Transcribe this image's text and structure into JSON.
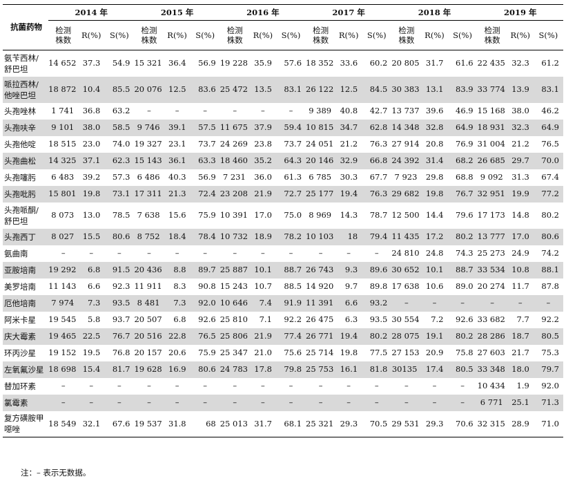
{
  "header": {
    "drug_col": "抗菌药物",
    "years": [
      "2014 年",
      "2015 年",
      "2016 年",
      "2017 年",
      "2018 年",
      "2019 年"
    ],
    "sub_n": "检测株数",
    "sub_r": "R(%)",
    "sub_s": "S(%)"
  },
  "rows": [
    {
      "drug": "氨苄西林/舒巴坦",
      "cells": [
        [
          "14 652",
          "37.3",
          "54.9"
        ],
        [
          "15 321",
          "36.4",
          "56.9"
        ],
        [
          "19 228",
          "35.9",
          "57.6"
        ],
        [
          "18 352",
          "33.6",
          "60.2"
        ],
        [
          "20 805",
          "31.7",
          "61.6"
        ],
        [
          "22 435",
          "32.3",
          "61.2"
        ]
      ]
    },
    {
      "drug": "哌拉西林/他唑巴坦",
      "cells": [
        [
          "18 872",
          "10.4",
          "85.5"
        ],
        [
          "20 076",
          "12.5",
          "83.6"
        ],
        [
          "25 472",
          "13.5",
          "83.1"
        ],
        [
          "26 122",
          "12.5",
          "84.5"
        ],
        [
          "30 383",
          "13.1",
          "83.9"
        ],
        [
          "33 774",
          "13.9",
          "83.1"
        ]
      ]
    },
    {
      "drug": "头孢唑林",
      "cells": [
        [
          "1 741",
          "36.8",
          "63.2"
        ],
        [
          "–",
          "–",
          "–"
        ],
        [
          "–",
          "–",
          "–"
        ],
        [
          "9 389",
          "40.8",
          "42.7"
        ],
        [
          "13 737",
          "39.6",
          "46.9"
        ],
        [
          "15 168",
          "38.0",
          "46.2"
        ]
      ]
    },
    {
      "drug": "头孢呋辛",
      "cells": [
        [
          "9 101",
          "38.0",
          "58.5"
        ],
        [
          "9 746",
          "39.1",
          "57.5"
        ],
        [
          "11 675",
          "37.9",
          "59.4"
        ],
        [
          "10 815",
          "34.7",
          "62.8"
        ],
        [
          "14 348",
          "32.8",
          "64.9"
        ],
        [
          "18 931",
          "32.3",
          "64.9"
        ]
      ]
    },
    {
      "drug": "头孢他啶",
      "cells": [
        [
          "18 515",
          "23.0",
          "74.0"
        ],
        [
          "19 327",
          "23.1",
          "73.7"
        ],
        [
          "24 269",
          "23.8",
          "73.7"
        ],
        [
          "24 051",
          "21.2",
          "76.3"
        ],
        [
          "27 914",
          "20.8",
          "76.9"
        ],
        [
          "31 004",
          "21.2",
          "76.5"
        ]
      ]
    },
    {
      "drug": "头孢曲松",
      "cells": [
        [
          "14 325",
          "37.1",
          "62.3"
        ],
        [
          "15 143",
          "36.1",
          "63.3"
        ],
        [
          "18 460",
          "35.2",
          "64.3"
        ],
        [
          "20 146",
          "32.9",
          "66.8"
        ],
        [
          "24 392",
          "31.4",
          "68.2"
        ],
        [
          "26 685",
          "29.7",
          "70.0"
        ]
      ]
    },
    {
      "drug": "头孢噻肟",
      "cells": [
        [
          "6 483",
          "39.2",
          "57.3"
        ],
        [
          "6 486",
          "40.3",
          "56.9"
        ],
        [
          "7 231",
          "36.0",
          "61.3"
        ],
        [
          "6 785",
          "30.3",
          "67.7"
        ],
        [
          "7 923",
          "29.8",
          "68.8"
        ],
        [
          "9 092",
          "31.3",
          "67.4"
        ]
      ]
    },
    {
      "drug": "头孢吡肟",
      "cells": [
        [
          "15 801",
          "19.8",
          "73.1"
        ],
        [
          "17 311",
          "21.3",
          "72.4"
        ],
        [
          "23 208",
          "21.9",
          "72.7"
        ],
        [
          "25 177",
          "19.4",
          "76.3"
        ],
        [
          "29 682",
          "19.8",
          "76.7"
        ],
        [
          "32 951",
          "19.9",
          "77.2"
        ]
      ]
    },
    {
      "drug": "头孢哌酮/舒巴坦",
      "cells": [
        [
          "8 073",
          "13.0",
          "78.5"
        ],
        [
          "7 638",
          "15.6",
          "75.9"
        ],
        [
          "10 391",
          "17.0",
          "75.0"
        ],
        [
          "8 969",
          "14.3",
          "78.7"
        ],
        [
          "12 500",
          "14.4",
          "79.6"
        ],
        [
          "17 173",
          "14.8",
          "80.2"
        ]
      ]
    },
    {
      "drug": "头孢西丁",
      "cells": [
        [
          "8 027",
          "15.5",
          "80.6"
        ],
        [
          "8 752",
          "18.4",
          "78.4"
        ],
        [
          "10 732",
          "18.9",
          "78.2"
        ],
        [
          "10 103",
          "18",
          "79.4"
        ],
        [
          "11 435",
          "17.2",
          "80.2"
        ],
        [
          "13 777",
          "17.0",
          "80.6"
        ]
      ]
    },
    {
      "drug": "氨曲南",
      "cells": [
        [
          "–",
          "–",
          "–"
        ],
        [
          "–",
          "–",
          "–"
        ],
        [
          "–",
          "–",
          "–"
        ],
        [
          "–",
          "–",
          "–"
        ],
        [
          "24 810",
          "24.8",
          "74.3"
        ],
        [
          "25 273",
          "24.9",
          "74.2"
        ]
      ]
    },
    {
      "drug": "亚胺培南",
      "cells": [
        [
          "19 292",
          "6.8",
          "91.5"
        ],
        [
          "20 436",
          "8.8",
          "89.7"
        ],
        [
          "25 887",
          "10.1",
          "88.7"
        ],
        [
          "26 743",
          "9.3",
          "89.6"
        ],
        [
          "30 652",
          "10.1",
          "88.7"
        ],
        [
          "33 534",
          "10.8",
          "88.1"
        ]
      ]
    },
    {
      "drug": "美罗培南",
      "cells": [
        [
          "11 143",
          "6.6",
          "92.3"
        ],
        [
          "11 911",
          "8.3",
          "90.8"
        ],
        [
          "15 243",
          "10.7",
          "88.5"
        ],
        [
          "14 920",
          "9.7",
          "89.8"
        ],
        [
          "17 638",
          "10.6",
          "89.0"
        ],
        [
          "20 274",
          "11.7",
          "87.8"
        ]
      ]
    },
    {
      "drug": "厄他培南",
      "cells": [
        [
          "7 974",
          "7.3",
          "93.5"
        ],
        [
          "8 481",
          "7.3",
          "92.0"
        ],
        [
          "10 646",
          "7.4",
          "91.9"
        ],
        [
          "11 391",
          "6.6",
          "93.2"
        ],
        [
          "–",
          "–",
          "–"
        ],
        [
          "–",
          "–",
          "–"
        ]
      ]
    },
    {
      "drug": "阿米卡星",
      "cells": [
        [
          "19 545",
          "5.8",
          "93.7"
        ],
        [
          "20 507",
          "6.8",
          "92.6"
        ],
        [
          "25 810",
          "7.1",
          "92.2"
        ],
        [
          "26 475",
          "6.3",
          "93.5"
        ],
        [
          "30 554",
          "7.2",
          "92.6"
        ],
        [
          "33 682",
          "7.7",
          "92.2"
        ]
      ]
    },
    {
      "drug": "庆大霉素",
      "cells": [
        [
          "19 465",
          "22.5",
          "76.7"
        ],
        [
          "20 516",
          "22.8",
          "76.5"
        ],
        [
          "25 806",
          "21.9",
          "77.4"
        ],
        [
          "26 771",
          "19.4",
          "80.2"
        ],
        [
          "28 075",
          "19.1",
          "80.2"
        ],
        [
          "28 286",
          "18.7",
          "80.5"
        ]
      ]
    },
    {
      "drug": "环丙沙星",
      "cells": [
        [
          "19 152",
          "19.5",
          "76.8"
        ],
        [
          "20 157",
          "20.6",
          "75.9"
        ],
        [
          "25 347",
          "21.0",
          "75.6"
        ],
        [
          "25 714",
          "19.8",
          "77.5"
        ],
        [
          "27 153",
          "20.9",
          "75.8"
        ],
        [
          "27 603",
          "21.7",
          "75.3"
        ]
      ]
    },
    {
      "drug": "左氧氟沙星",
      "cells": [
        [
          "18 698",
          "15.4",
          "81.7"
        ],
        [
          "19 628",
          "16.9",
          "80.6"
        ],
        [
          "24 783",
          "17.8",
          "79.8"
        ],
        [
          "25 753",
          "16.1",
          "81.8"
        ],
        [
          "30135",
          "17.4",
          "80.5"
        ],
        [
          "33 348",
          "18.0",
          "79.7"
        ]
      ]
    },
    {
      "drug": "替加环素",
      "cells": [
        [
          "–",
          "–",
          "–"
        ],
        [
          "–",
          "–",
          "–"
        ],
        [
          "–",
          "–",
          "–"
        ],
        [
          "–",
          "–",
          "–"
        ],
        [
          "–",
          "–",
          "–"
        ],
        [
          "10 434",
          "1.9",
          "92.0"
        ]
      ]
    },
    {
      "drug": "氯霉素",
      "cells": [
        [
          "–",
          "–",
          "–"
        ],
        [
          "–",
          "–",
          "–"
        ],
        [
          "–",
          "–",
          "–"
        ],
        [
          "–",
          "–",
          "–"
        ],
        [
          "–",
          "–",
          "–"
        ],
        [
          "6 771",
          "25.1",
          "71.3"
        ]
      ]
    },
    {
      "drug": "复方磺胺甲噁唑",
      "cells": [
        [
          "18 549",
          "32.1",
          "67.6"
        ],
        [
          "19 537",
          "31.8",
          "68"
        ],
        [
          "25 013",
          "31.7",
          "68.1"
        ],
        [
          "25 321",
          "29.3",
          "70.5"
        ],
        [
          "29 531",
          "29.3",
          "70.6"
        ],
        [
          "32 315",
          "28.9",
          "71.0"
        ]
      ]
    }
  ],
  "note": "注：– 表示无数据。"
}
